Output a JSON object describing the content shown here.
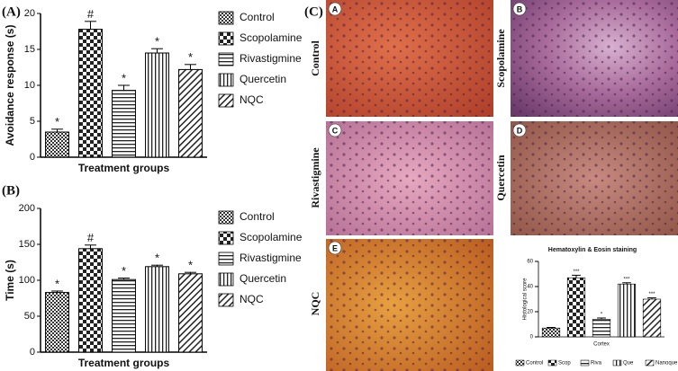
{
  "chart_data": [
    {
      "type": "bar",
      "panel_label": "(A)",
      "y_label": "Avoidance response (s)",
      "x_label": "Treatment groups",
      "categories": [
        "Control",
        "Scopolamine",
        "Rivastigmine",
        "Quercetin",
        "NQC"
      ],
      "values": [
        3.5,
        17.8,
        9.3,
        14.5,
        12.2
      ],
      "errors": [
        0.4,
        1.1,
        0.7,
        0.6,
        0.7
      ],
      "annotations": [
        "*",
        "#",
        "*",
        "*",
        "*"
      ],
      "ylim": [
        0,
        20
      ],
      "yticks": [
        0,
        5,
        10,
        15,
        20
      ]
    },
    {
      "type": "bar",
      "panel_label": "(B)",
      "y_label": "Time (s)",
      "x_label": "Treatment groups",
      "categories": [
        "Control",
        "Scopolamine",
        "Rivastigmine",
        "Quercetin",
        "NQC"
      ],
      "values": [
        83,
        144,
        101,
        119,
        109
      ],
      "errors": [
        2,
        5,
        2,
        2,
        2
      ],
      "annotations": [
        "*",
        "#",
        "*",
        "*",
        "*"
      ],
      "ylim": [
        0,
        200
      ],
      "yticks": [
        0,
        50,
        100,
        150,
        200
      ]
    },
    {
      "type": "bar",
      "title": "Hematoxylin & Eosin staining",
      "y_label": "Histological score",
      "x_label": "Cortex",
      "categories": [
        "Control",
        "Scop",
        "Riva",
        "Que",
        "Nanoque"
      ],
      "values": [
        7,
        47,
        14,
        42,
        30
      ],
      "errors": [
        0.5,
        2,
        1,
        1,
        1
      ],
      "annotations": [
        null,
        "***",
        "*",
        "***",
        "***"
      ],
      "ylim": [
        0,
        60
      ],
      "yticks": [
        0,
        20,
        40,
        60
      ]
    }
  ],
  "panel_c": {
    "label": "(C)",
    "images": [
      {
        "letter": "A",
        "label": "Control"
      },
      {
        "letter": "B",
        "label": "Scopolamine"
      },
      {
        "letter": "C",
        "label": "Rivastigmine"
      },
      {
        "letter": "D",
        "label": "Quercetin"
      },
      {
        "letter": "E",
        "label": "NQC"
      }
    ]
  }
}
